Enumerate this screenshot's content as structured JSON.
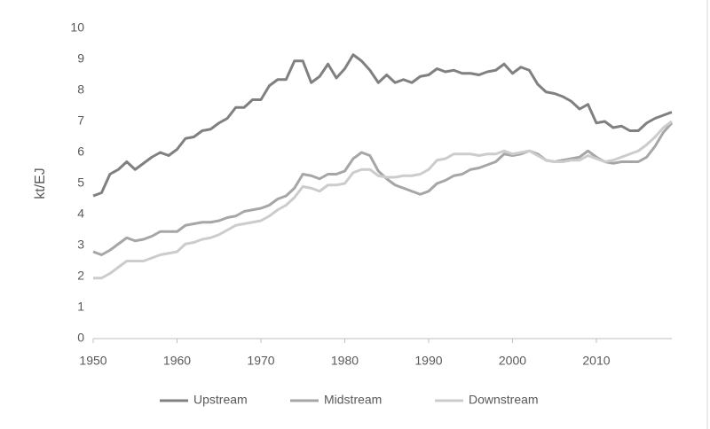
{
  "chart_data": {
    "type": "line",
    "ylabel": "kt/EJ",
    "x": [
      1950,
      1951,
      1952,
      1953,
      1954,
      1955,
      1956,
      1957,
      1958,
      1959,
      1960,
      1961,
      1962,
      1963,
      1964,
      1965,
      1966,
      1967,
      1968,
      1969,
      1970,
      1971,
      1972,
      1973,
      1974,
      1975,
      1976,
      1977,
      1978,
      1979,
      1980,
      1981,
      1982,
      1983,
      1984,
      1985,
      1986,
      1987,
      1988,
      1989,
      1990,
      1991,
      1992,
      1993,
      1994,
      1995,
      1996,
      1997,
      1998,
      1999,
      2000,
      2001,
      2002,
      2003,
      2004,
      2005,
      2006,
      2007,
      2008,
      2009,
      2010,
      2011,
      2012,
      2013,
      2014,
      2015,
      2016,
      2017,
      2018,
      2019
    ],
    "series": [
      {
        "name": "Upstream",
        "color": "#808080",
        "values": [
          4.6,
          4.7,
          5.3,
          5.45,
          5.7,
          5.45,
          5.65,
          5.85,
          6.0,
          5.9,
          6.1,
          6.45,
          6.5,
          6.7,
          6.75,
          6.95,
          7.1,
          7.45,
          7.45,
          7.7,
          7.7,
          8.15,
          8.35,
          8.35,
          8.95,
          8.95,
          8.25,
          8.45,
          8.85,
          8.4,
          8.7,
          9.15,
          8.95,
          8.65,
          8.25,
          8.5,
          8.25,
          8.35,
          8.25,
          8.45,
          8.5,
          8.7,
          8.6,
          8.65,
          8.55,
          8.55,
          8.5,
          8.6,
          8.65,
          8.85,
          8.55,
          8.75,
          8.65,
          8.2,
          7.95,
          7.9,
          7.8,
          7.65,
          7.4,
          7.55,
          6.95,
          7.0,
          6.8,
          6.85,
          6.7,
          6.7,
          6.95,
          7.1,
          7.2,
          7.3
        ]
      },
      {
        "name": "Midstream",
        "color": "#a6a6a6",
        "values": [
          2.8,
          2.7,
          2.85,
          3.05,
          3.25,
          3.15,
          3.2,
          3.3,
          3.45,
          3.45,
          3.45,
          3.65,
          3.7,
          3.75,
          3.75,
          3.8,
          3.9,
          3.95,
          4.1,
          4.15,
          4.2,
          4.3,
          4.5,
          4.6,
          4.85,
          5.3,
          5.25,
          5.15,
          5.3,
          5.3,
          5.4,
          5.8,
          6.0,
          5.9,
          5.4,
          5.15,
          4.95,
          4.85,
          4.75,
          4.65,
          4.75,
          5.0,
          5.1,
          5.25,
          5.3,
          5.45,
          5.5,
          5.6,
          5.7,
          5.95,
          5.9,
          5.95,
          6.05,
          5.95,
          5.75,
          5.7,
          5.75,
          5.8,
          5.85,
          6.05,
          5.85,
          5.7,
          5.65,
          5.7,
          5.7,
          5.7,
          5.85,
          6.2,
          6.65,
          6.95
        ]
      },
      {
        "name": "Downstream",
        "color": "#cccccc",
        "values": [
          1.95,
          1.95,
          2.1,
          2.3,
          2.5,
          2.5,
          2.5,
          2.6,
          2.7,
          2.75,
          2.8,
          3.05,
          3.1,
          3.2,
          3.25,
          3.35,
          3.5,
          3.65,
          3.7,
          3.75,
          3.8,
          3.95,
          4.15,
          4.3,
          4.55,
          4.9,
          4.85,
          4.75,
          4.95,
          4.95,
          5.0,
          5.35,
          5.45,
          5.45,
          5.25,
          5.2,
          5.2,
          5.25,
          5.25,
          5.3,
          5.45,
          5.75,
          5.8,
          5.95,
          5.95,
          5.95,
          5.9,
          5.95,
          5.95,
          6.05,
          5.95,
          6.0,
          6.05,
          5.9,
          5.75,
          5.7,
          5.7,
          5.75,
          5.75,
          5.9,
          5.8,
          5.7,
          5.75,
          5.85,
          5.95,
          6.05,
          6.25,
          6.5,
          6.8,
          7.0
        ]
      }
    ],
    "xlim": [
      1950,
      2019
    ],
    "xticks": [
      1950,
      1960,
      1970,
      1980,
      1990,
      2000,
      2010
    ],
    "ylim": [
      0,
      10
    ],
    "yticks": [
      0,
      1,
      2,
      3,
      4,
      5,
      6,
      7,
      8,
      9,
      10
    ],
    "legend": "bottom"
  }
}
